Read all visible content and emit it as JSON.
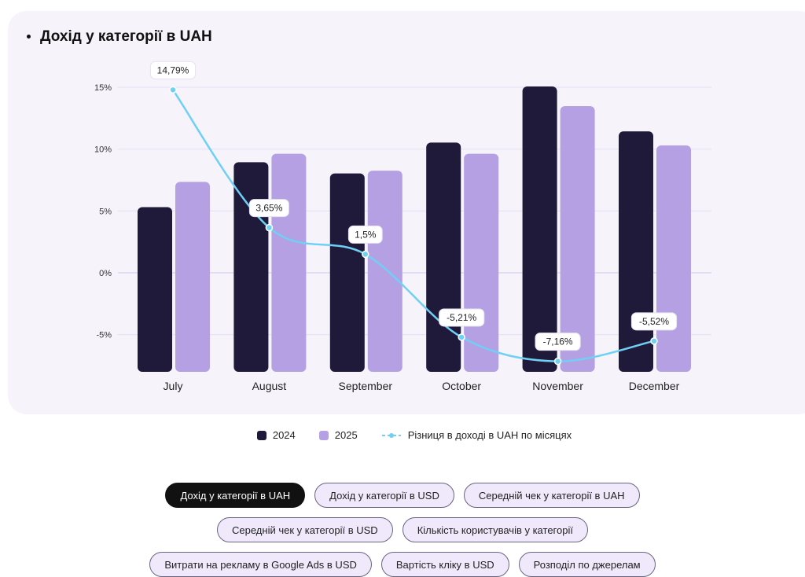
{
  "title": "Дохід у категорії в UAH",
  "legend": {
    "s2024": "2024",
    "s2025": "2025",
    "line": "Різниця в доході в UAH по місяцях"
  },
  "colors": {
    "s2024": "#1f1a3a",
    "s2025": "#b4a0e3",
    "line": "#6fd0f6"
  },
  "chart_data": {
    "type": "bar",
    "title": "Дохід у категорії в UAH",
    "categories": [
      "July",
      "August",
      "September",
      "October",
      "November",
      "December"
    ],
    "series": [
      {
        "name": "2024",
        "values": [
          57,
          73,
          69,
          80,
          100,
          84
        ],
        "note": "relative height, no axis shown"
      },
      {
        "name": "2025",
        "values": [
          66,
          76,
          70,
          76,
          93,
          79
        ],
        "note": "relative height, no axis shown"
      },
      {
        "name": "Різниця в доході в UAH по місяцях",
        "type": "line",
        "values": [
          14.79,
          3.65,
          1.5,
          -5.21,
          -7.16,
          -5.52
        ],
        "labels": [
          "14,79%",
          "3,65%",
          "1,5%",
          "-5,21%",
          "-7,16%",
          "-5,52%"
        ]
      }
    ],
    "y_ticks": [
      "15%",
      "10%",
      "5%",
      "0%",
      "-5%"
    ],
    "y_tick_values": [
      15,
      10,
      5,
      0,
      -5
    ],
    "ylim": [
      -7.6,
      15
    ],
    "grid": true,
    "legend_position": "bottom"
  },
  "buttons": [
    [
      "Дохід у категорії в UAH",
      "Дохід у категорії в USD",
      "Середній чек у категорії в UAH"
    ],
    [
      "Середній чек у категорії в USD",
      "Кількість користувачів у категорії"
    ],
    [
      "Витрати на рекламу в Google Ads в USD",
      "Вартість кліку в USD",
      "Розподіл по джерелам"
    ]
  ]
}
